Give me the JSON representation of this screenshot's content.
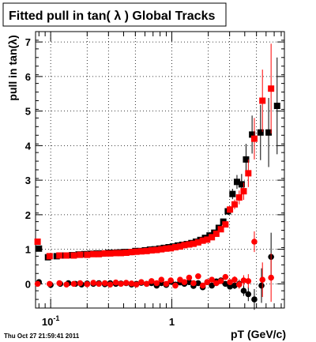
{
  "title": "Fitted pull in tan( λ )  Global Tracks",
  "timestamp": "Thu Oct 27 21:59:41 2011",
  "chart_data": {
    "type": "scatter",
    "title": "Fitted pull in tan( λ )  Global Tracks",
    "xlabel": "pT (GeV/c)",
    "ylabel": "pull in tan(λ)",
    "xscale": "log",
    "xlim": [
      0.075,
      8.5
    ],
    "ylim": [
      -0.7,
      7.3
    ],
    "x_tick_labels": [
      {
        "value": 0.1,
        "base": "10",
        "exp": "-1"
      },
      {
        "value": 1,
        "base": "1",
        "exp": ""
      }
    ],
    "y_ticks": [
      0,
      1,
      2,
      3,
      4,
      5,
      6,
      7
    ],
    "grid": true,
    "colors": {
      "black_series": "#000000",
      "red_series": "#ff0000"
    },
    "series": [
      {
        "marker": "square",
        "color": "#000000",
        "role": "width",
        "x": [
          0.08,
          0.095,
          0.112,
          0.13,
          0.15,
          0.17,
          0.19,
          0.215,
          0.24,
          0.27,
          0.3,
          0.33,
          0.37,
          0.41,
          0.45,
          0.5,
          0.55,
          0.6,
          0.66,
          0.72,
          0.79,
          0.86,
          0.94,
          1.02,
          1.12,
          1.22,
          1.33,
          1.45,
          1.58,
          1.72,
          1.88,
          2.05,
          2.24,
          2.44,
          2.66,
          2.9,
          3.17,
          3.45,
          3.77,
          4.1,
          4.6,
          5.4,
          6.3,
          7.4
        ],
        "y": [
          1.02,
          0.77,
          0.8,
          0.82,
          0.83,
          0.85,
          0.86,
          0.87,
          0.88,
          0.88,
          0.9,
          0.9,
          0.91,
          0.92,
          0.92,
          0.95,
          0.95,
          0.97,
          0.99,
          1.0,
          1.02,
          1.04,
          1.06,
          1.08,
          1.11,
          1.13,
          1.15,
          1.18,
          1.22,
          1.27,
          1.33,
          1.4,
          1.48,
          1.62,
          1.8,
          2.1,
          2.6,
          2.95,
          2.88,
          3.6,
          4.32,
          4.38,
          4.38,
          5.15
        ],
        "err": [
          0.03,
          0.02,
          0.02,
          0.02,
          0.02,
          0.02,
          0.02,
          0.02,
          0.02,
          0.02,
          0.02,
          0.02,
          0.02,
          0.02,
          0.02,
          0.02,
          0.02,
          0.02,
          0.02,
          0.02,
          0.02,
          0.02,
          0.02,
          0.02,
          0.02,
          0.02,
          0.03,
          0.03,
          0.03,
          0.03,
          0.04,
          0.04,
          0.05,
          0.06,
          0.08,
          0.1,
          0.15,
          0.2,
          0.3,
          0.45,
          0.55,
          0.8,
          1.0,
          1.4
        ]
      },
      {
        "marker": "square",
        "color": "#ff0000",
        "role": "width",
        "x": [
          0.078,
          0.098,
          0.118,
          0.135,
          0.155,
          0.175,
          0.2,
          0.225,
          0.25,
          0.28,
          0.31,
          0.345,
          0.38,
          0.42,
          0.465,
          0.51,
          0.56,
          0.62,
          0.68,
          0.75,
          0.82,
          0.9,
          0.98,
          1.07,
          1.17,
          1.27,
          1.39,
          1.51,
          1.65,
          1.8,
          1.96,
          2.14,
          2.33,
          2.54,
          2.77,
          3.02,
          3.3,
          3.6,
          3.92,
          4.28,
          4.8,
          5.6,
          6.6
        ],
        "y": [
          1.22,
          0.8,
          0.82,
          0.82,
          0.82,
          0.84,
          0.84,
          0.86,
          0.86,
          0.88,
          0.88,
          0.89,
          0.89,
          0.9,
          0.92,
          0.93,
          0.94,
          0.95,
          0.97,
          0.98,
          1.0,
          1.02,
          1.03,
          1.06,
          1.08,
          1.12,
          1.14,
          1.16,
          1.2,
          1.25,
          1.28,
          1.35,
          1.45,
          1.58,
          1.72,
          2.15,
          2.3,
          2.5,
          2.68,
          3.2,
          4.2,
          5.3,
          5.65
        ],
        "err": [
          0.03,
          0.02,
          0.02,
          0.02,
          0.02,
          0.02,
          0.02,
          0.02,
          0.02,
          0.02,
          0.02,
          0.02,
          0.02,
          0.02,
          0.02,
          0.02,
          0.02,
          0.02,
          0.02,
          0.02,
          0.02,
          0.02,
          0.02,
          0.02,
          0.02,
          0.02,
          0.03,
          0.03,
          0.03,
          0.03,
          0.04,
          0.04,
          0.05,
          0.06,
          0.07,
          0.1,
          0.14,
          0.2,
          0.25,
          0.4,
          0.6,
          0.9,
          1.3
        ]
      },
      {
        "marker": "circle",
        "color": "#000000",
        "role": "mean",
        "x": [
          0.08,
          0.1,
          0.12,
          0.14,
          0.16,
          0.18,
          0.2,
          0.225,
          0.25,
          0.28,
          0.31,
          0.345,
          0.38,
          0.42,
          0.465,
          0.51,
          0.56,
          0.62,
          0.68,
          0.75,
          0.82,
          0.9,
          0.98,
          1.07,
          1.17,
          1.27,
          1.39,
          1.51,
          1.65,
          1.8,
          1.96,
          2.14,
          2.33,
          2.54,
          2.77,
          3.02,
          3.3,
          3.6,
          3.92,
          4.28,
          4.8,
          5.5,
          6.6
        ],
        "y": [
          0.05,
          -0.03,
          0.0,
          0.02,
          0.0,
          -0.02,
          0.01,
          0.0,
          0.02,
          -0.01,
          0.02,
          0.0,
          0.01,
          0.02,
          -0.02,
          0.0,
          0.03,
          0.0,
          0.02,
          -0.05,
          0.02,
          -0.03,
          0.06,
          -0.02,
          0.04,
          0.0,
          0.05,
          -0.06,
          0.02,
          -0.1,
          0.05,
          -0.05,
          0.07,
          0.1,
          0.0,
          -0.08,
          -0.05,
          0.0,
          -0.2,
          -0.3,
          -0.45,
          -0.05,
          0.78
        ],
        "err": [
          0.03,
          0.02,
          0.02,
          0.02,
          0.02,
          0.02,
          0.02,
          0.02,
          0.02,
          0.02,
          0.02,
          0.02,
          0.02,
          0.02,
          0.02,
          0.02,
          0.02,
          0.02,
          0.02,
          0.02,
          0.02,
          0.02,
          0.02,
          0.02,
          0.02,
          0.02,
          0.03,
          0.03,
          0.03,
          0.03,
          0.03,
          0.04,
          0.05,
          0.06,
          0.07,
          0.08,
          0.1,
          0.12,
          0.15,
          0.2,
          0.3,
          0.5,
          0.7
        ]
      },
      {
        "marker": "circle",
        "color": "#ff0000",
        "role": "mean",
        "x": [
          0.078,
          0.098,
          0.118,
          0.135,
          0.155,
          0.175,
          0.2,
          0.225,
          0.25,
          0.28,
          0.31,
          0.345,
          0.38,
          0.42,
          0.465,
          0.51,
          0.56,
          0.62,
          0.68,
          0.75,
          0.82,
          0.9,
          0.98,
          1.07,
          1.17,
          1.27,
          1.39,
          1.51,
          1.65,
          1.8,
          1.96,
          2.14,
          2.33,
          2.54,
          2.77,
          3.02,
          3.3,
          3.6,
          3.92,
          4.28,
          4.8,
          5.6,
          6.6
        ],
        "y": [
          0.0,
          0.0,
          0.02,
          -0.02,
          0.0,
          0.02,
          -0.01,
          0.03,
          0.0,
          0.02,
          -0.02,
          0.04,
          0.0,
          0.03,
          0.01,
          -0.02,
          0.05,
          0.0,
          0.08,
          0.02,
          0.12,
          0.0,
          0.1,
          -0.05,
          0.12,
          0.05,
          0.18,
          0.02,
          0.22,
          -0.05,
          0.05,
          0.12,
          0.02,
          0.08,
          0.2,
          0.05,
          0.12,
          -0.02,
          0.1,
          0.08,
          1.22,
          0.12,
          0.18
        ],
        "err": [
          0.03,
          0.02,
          0.02,
          0.02,
          0.02,
          0.02,
          0.02,
          0.02,
          0.02,
          0.02,
          0.02,
          0.02,
          0.02,
          0.02,
          0.02,
          0.02,
          0.02,
          0.02,
          0.02,
          0.02,
          0.02,
          0.02,
          0.02,
          0.02,
          0.02,
          0.02,
          0.03,
          0.03,
          0.03,
          0.03,
          0.03,
          0.04,
          0.05,
          0.06,
          0.07,
          0.08,
          0.1,
          0.12,
          0.15,
          0.2,
          0.3,
          0.5,
          0.7
        ]
      }
    ]
  }
}
